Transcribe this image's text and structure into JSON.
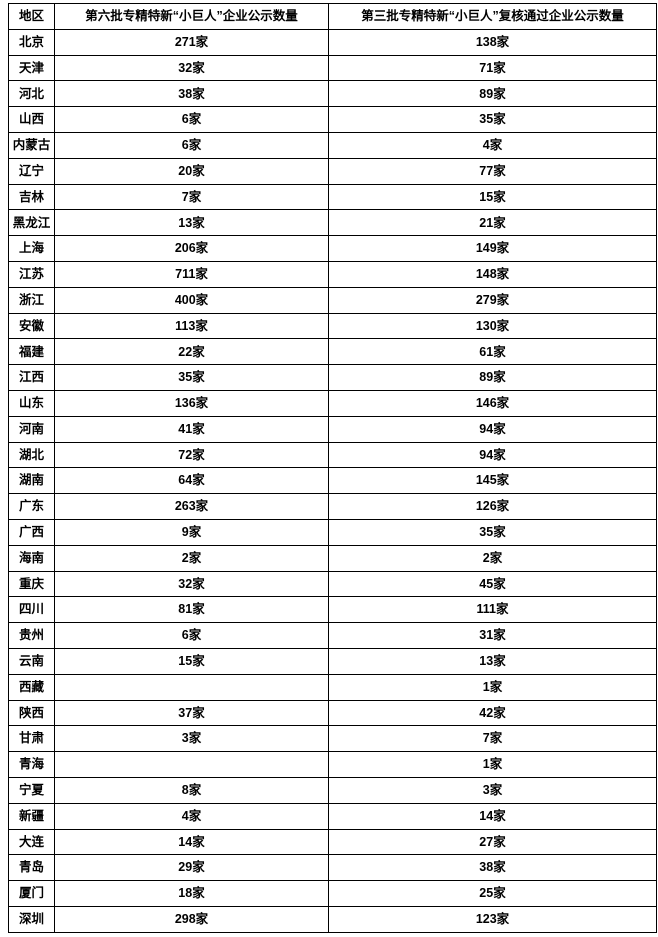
{
  "page": {
    "background": "#ffffff",
    "border_color": "#000000",
    "text_color": "#000000"
  },
  "chart_data": {
    "type": "table",
    "title": "",
    "columns": [
      "地区",
      "第六批专精特新“小巨人”企业公示数量",
      "第三批专精特新“小巨人”复核通过企业公示数量"
    ],
    "rows": [
      [
        "北京",
        "271家",
        "138家"
      ],
      [
        "天津",
        "32家",
        "71家"
      ],
      [
        "河北",
        "38家",
        "89家"
      ],
      [
        "山西",
        "6家",
        "35家"
      ],
      [
        "内蒙古",
        "6家",
        "4家"
      ],
      [
        "辽宁",
        "20家",
        "77家"
      ],
      [
        "吉林",
        "7家",
        "15家"
      ],
      [
        "黑龙江",
        "13家",
        "21家"
      ],
      [
        "上海",
        "206家",
        "149家"
      ],
      [
        "江苏",
        "711家",
        "148家"
      ],
      [
        "浙江",
        "400家",
        "279家"
      ],
      [
        "安徽",
        "113家",
        "130家"
      ],
      [
        "福建",
        "22家",
        "61家"
      ],
      [
        "江西",
        "35家",
        "89家"
      ],
      [
        "山东",
        "136家",
        "146家"
      ],
      [
        "河南",
        "41家",
        "94家"
      ],
      [
        "湖北",
        "72家",
        "94家"
      ],
      [
        "湖南",
        "64家",
        "145家"
      ],
      [
        "广东",
        "263家",
        "126家"
      ],
      [
        "广西",
        "9家",
        "35家"
      ],
      [
        "海南",
        "2家",
        "2家"
      ],
      [
        "重庆",
        "32家",
        "45家"
      ],
      [
        "四川",
        "81家",
        "111家"
      ],
      [
        "贵州",
        "6家",
        "31家"
      ],
      [
        "云南",
        "15家",
        "13家"
      ],
      [
        "西藏",
        "",
        "1家"
      ],
      [
        "陕西",
        "37家",
        "42家"
      ],
      [
        "甘肃",
        "3家",
        "7家"
      ],
      [
        "青海",
        "",
        "1家"
      ],
      [
        "宁夏",
        "8家",
        "3家"
      ],
      [
        "新疆",
        "4家",
        "14家"
      ],
      [
        "大连",
        "14家",
        "27家"
      ],
      [
        "青岛",
        "29家",
        "38家"
      ],
      [
        "厦门",
        "18家",
        "25家"
      ],
      [
        "深圳",
        "298家",
        "123家"
      ]
    ],
    "series": [
      {
        "name": "第六批专精特新“小巨人”企业公示数量",
        "values": [
          271,
          32,
          38,
          6,
          6,
          20,
          7,
          13,
          206,
          711,
          400,
          113,
          22,
          35,
          136,
          41,
          72,
          64,
          263,
          9,
          2,
          32,
          81,
          6,
          15,
          null,
          37,
          3,
          null,
          8,
          4,
          14,
          29,
          18,
          298
        ]
      },
      {
        "name": "第三批专精特新“小巨人”复核通过企业公示数量",
        "values": [
          138,
          71,
          89,
          35,
          4,
          77,
          15,
          21,
          149,
          148,
          279,
          130,
          61,
          89,
          146,
          94,
          94,
          145,
          126,
          35,
          2,
          45,
          111,
          31,
          13,
          1,
          42,
          7,
          1,
          3,
          14,
          27,
          38,
          25,
          123
        ]
      }
    ],
    "categories": [
      "北京",
      "天津",
      "河北",
      "山西",
      "内蒙古",
      "辽宁",
      "吉林",
      "黑龙江",
      "上海",
      "江苏",
      "浙江",
      "安徽",
      "福建",
      "江西",
      "山东",
      "河南",
      "湖北",
      "湖南",
      "广东",
      "广西",
      "海南",
      "重庆",
      "四川",
      "贵州",
      "云南",
      "西藏",
      "陕西",
      "甘肃",
      "青海",
      "宁夏",
      "新疆",
      "大连",
      "青岛",
      "厦门",
      "深圳"
    ],
    "unit_suffix": "家",
    "layout": {
      "grid": "all-borders",
      "header_row": true,
      "row_count": 35,
      "column_count": 3
    }
  }
}
